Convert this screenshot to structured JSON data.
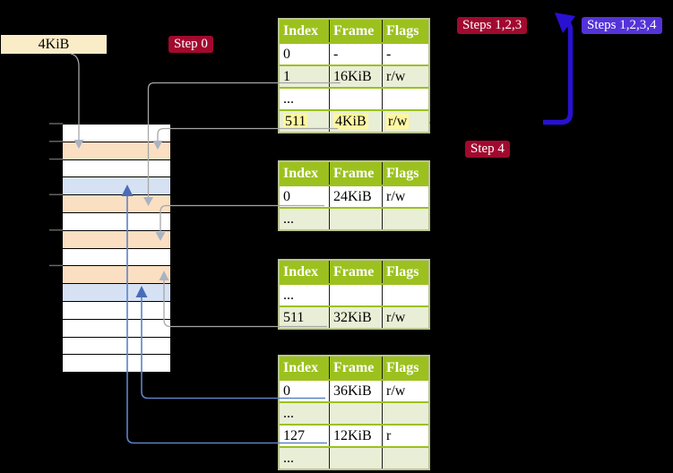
{
  "colors": {
    "background": "#000000",
    "table-header": "#9cc11f",
    "table-row-shade": "#e9eed6",
    "table-border": "#bac491",
    "row-separator": "#9cc11f",
    "col-separator": "#1c1c1c",
    "highlight": "#fdf7a1",
    "crimson-label": "#a2092f",
    "indigo-label": "#5433d9",
    "indigo-arrow": "#2a10d2",
    "grey-line": "#a6a6a6",
    "grey-arrowhead": "#a9b3c2",
    "blue-line": "#5e82c4",
    "blue-arrowhead": "#4a6cb8",
    "cream-label": "#fbecc8",
    "strip-orange": "#fbdfc2",
    "strip-blue": "#d6e2f4",
    "strip-white": "#ffffff",
    "tick": "#6a6a6a",
    "black-arrow": "#000000"
  },
  "labels": {
    "page_size": "4KiB",
    "step0": "Step 0",
    "step4": "Step 4",
    "steps123": "Steps 1,2,3",
    "steps1234": "Steps 1,2,3,4"
  },
  "tables": [
    {
      "name": "page-table-l4",
      "columns": [
        "Index",
        "Frame",
        "Flags"
      ],
      "rows": [
        {
          "cells": [
            "0",
            "-",
            "-"
          ],
          "shade": false
        },
        {
          "cells": [
            "1",
            "16KiB",
            "r/w"
          ],
          "shade": true
        },
        {
          "cells": [
            "...",
            "",
            ""
          ],
          "shade": false
        },
        {
          "cells": [
            "511",
            "4KiB",
            "r/w"
          ],
          "shade": true,
          "highlight": true
        }
      ]
    },
    {
      "name": "page-table-l3",
      "columns": [
        "Index",
        "Frame",
        "Flags"
      ],
      "rows": [
        {
          "cells": [
            "0",
            "24KiB",
            "r/w"
          ],
          "shade": false
        },
        {
          "cells": [
            "...",
            "",
            ""
          ],
          "shade": true
        }
      ]
    },
    {
      "name": "page-table-l2",
      "columns": [
        "Index",
        "Frame",
        "Flags"
      ],
      "rows": [
        {
          "cells": [
            "...",
            "",
            ""
          ],
          "shade": false
        },
        {
          "cells": [
            "511",
            "32KiB",
            "r/w"
          ],
          "shade": true
        }
      ]
    },
    {
      "name": "page-table-l1",
      "columns": [
        "Index",
        "Frame",
        "Flags"
      ],
      "rows": [
        {
          "cells": [
            "0",
            "36KiB",
            "r/w"
          ],
          "shade": false
        },
        {
          "cells": [
            "...",
            "",
            ""
          ],
          "shade": true
        },
        {
          "cells": [
            "127",
            "12KiB",
            "r"
          ],
          "shade": false
        },
        {
          "cells": [
            "...",
            "",
            ""
          ],
          "shade": true
        }
      ]
    }
  ],
  "strip": {
    "rows": [
      "white",
      "orange",
      "white",
      "blue",
      "orange",
      "white",
      "orange",
      "white",
      "orange",
      "blue",
      "white",
      "white",
      "white",
      "white"
    ]
  }
}
